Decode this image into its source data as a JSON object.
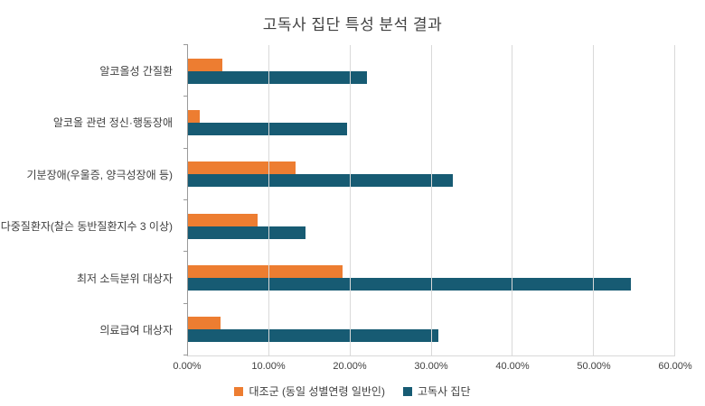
{
  "chart_data": {
    "type": "bar",
    "orientation": "horizontal",
    "title": "고독사 집단 특성 분석 결과",
    "categories": [
      "알코올성 간질환",
      "알코올 관련 정신·행동장애",
      "기분장애(우울증, 양극성장애 등)",
      "다중질환자(찰슨 동반질환지수 3 이상)",
      "최저 소득분위 대상자",
      "의료급여 대상자"
    ],
    "series": [
      {
        "name": "대조군 (동일 성별연령 일반인)",
        "color": "#ED7D31",
        "values": [
          4.2,
          1.5,
          13.2,
          8.6,
          19.0,
          4.0
        ]
      },
      {
        "name": "고독사 집단",
        "color": "#175B73",
        "values": [
          22.0,
          19.6,
          32.6,
          14.5,
          54.6,
          30.8
        ]
      }
    ],
    "x_ticks": [
      "0.00%",
      "10.00%",
      "20.00%",
      "30.00%",
      "40.00%",
      "50.00%",
      "60.00%"
    ],
    "xlim": [
      0,
      60
    ],
    "grid": true,
    "legend_position": "bottom",
    "colors": {
      "gridline": "#d9d9d9",
      "axis": "#9a9a9a",
      "text": "#404040"
    }
  }
}
